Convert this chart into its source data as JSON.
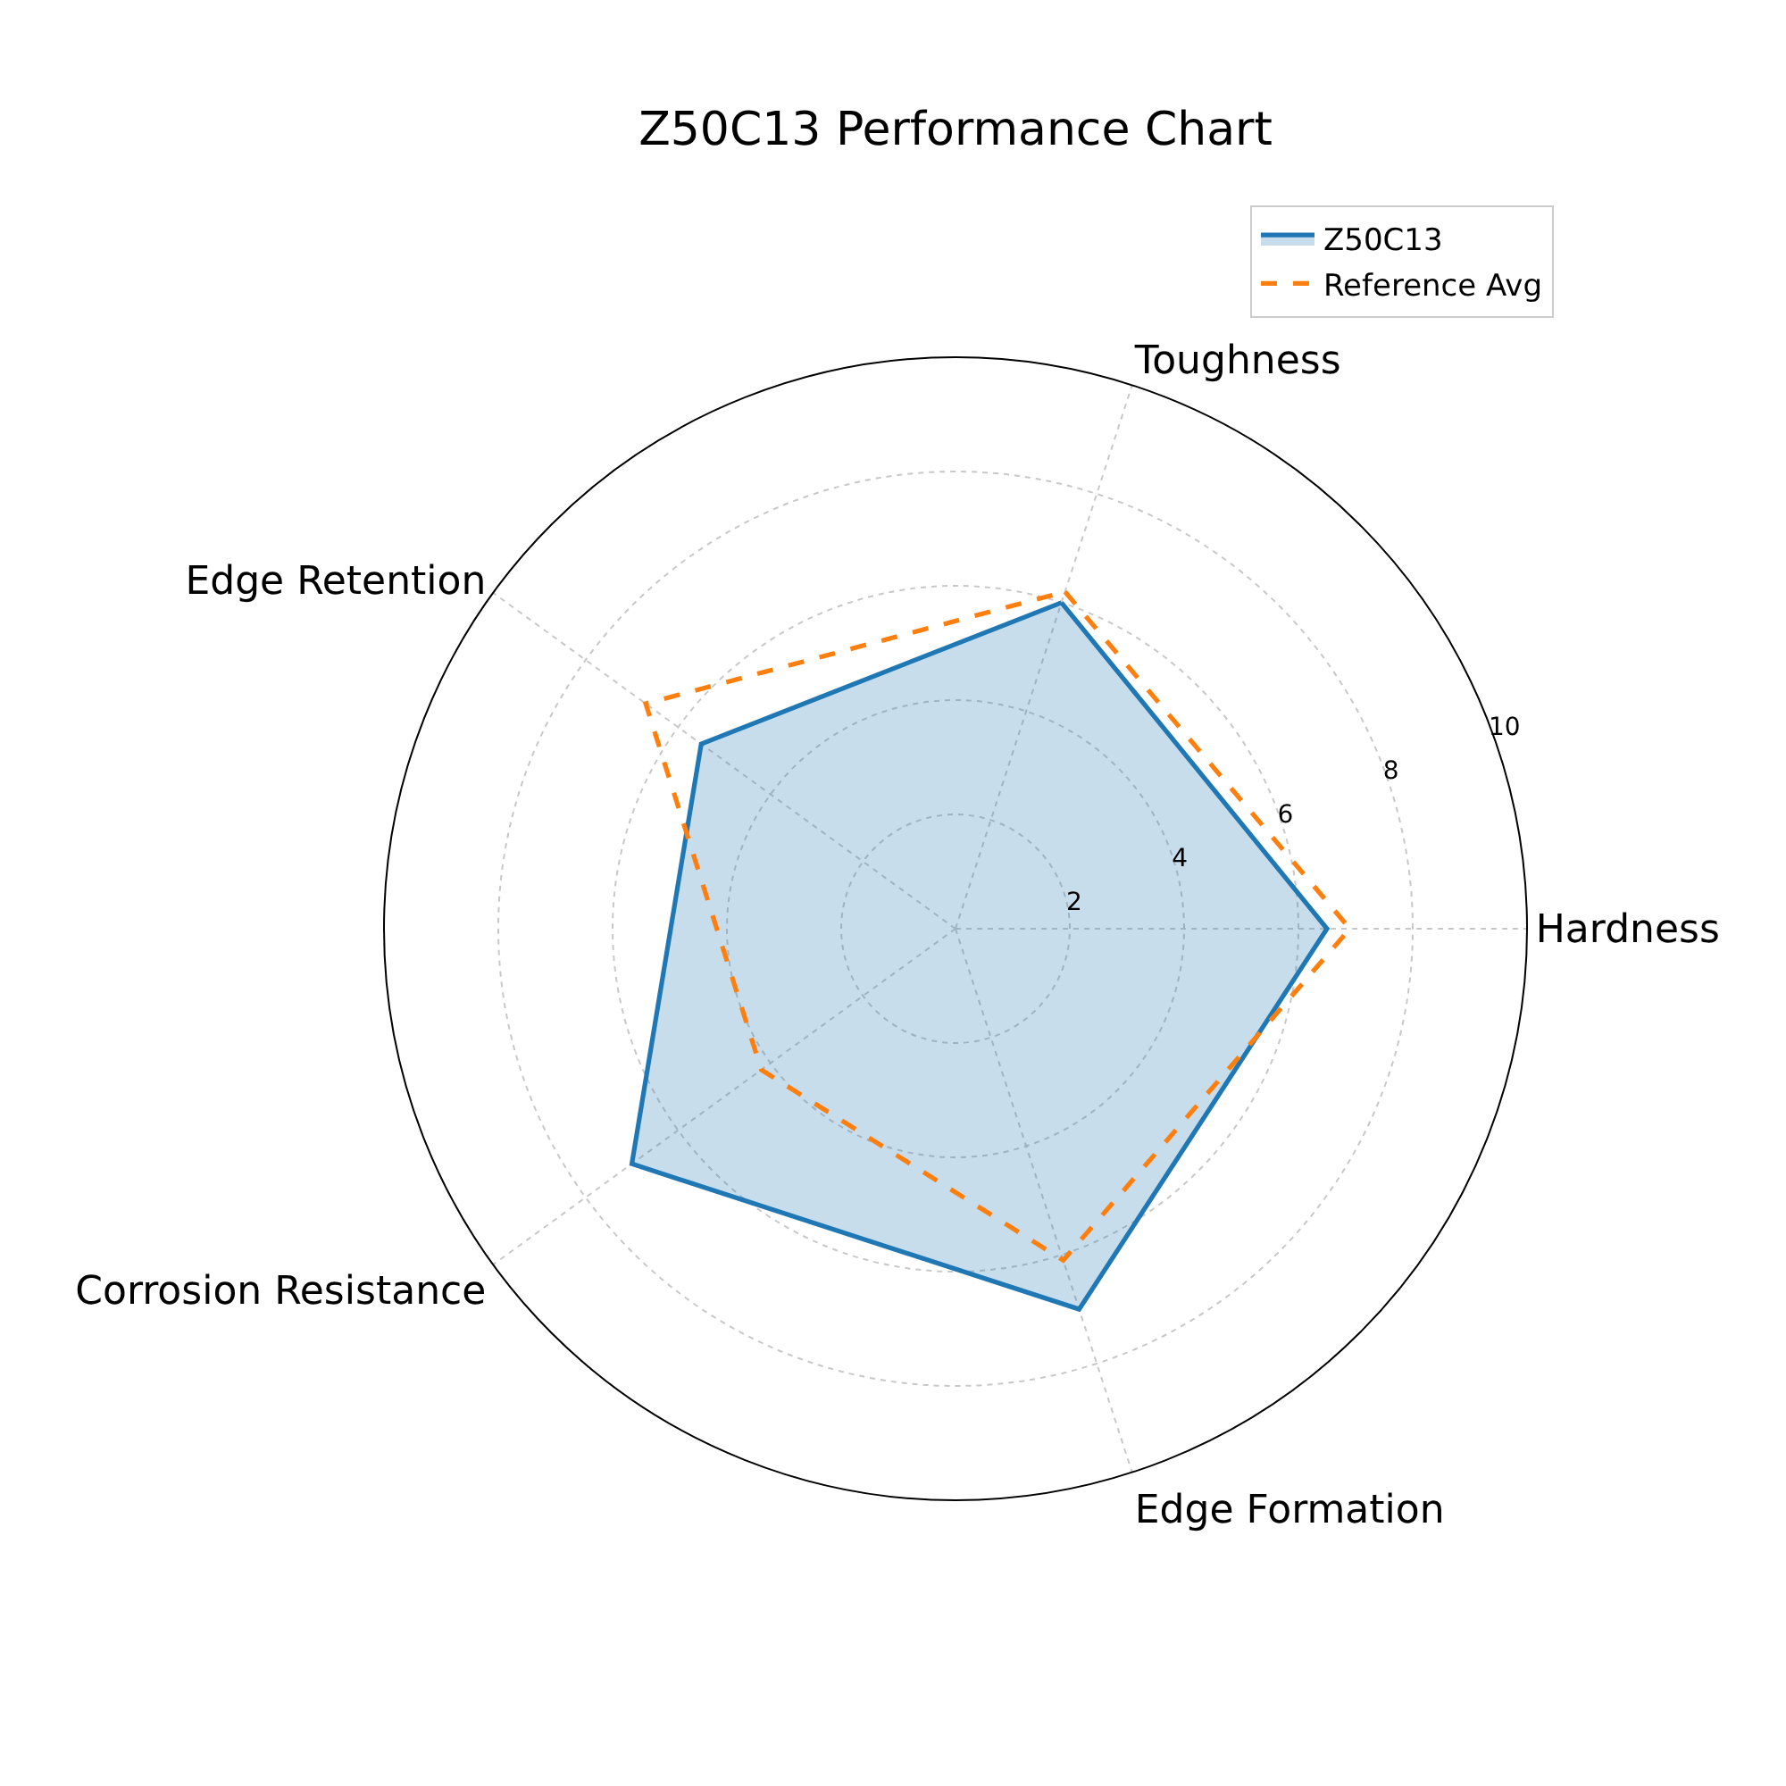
{
  "chart_data": {
    "type": "radar",
    "title": "Z50C13 Performance Chart",
    "categories": [
      "Toughness",
      "Hardness",
      "Edge Formation",
      "Corrosion Resistance",
      "Edge Retention"
    ],
    "series": [
      {
        "name": "Z50C13",
        "type": "area",
        "color": "#1f77b4",
        "line_style": "solid",
        "values": [
          6.0,
          6.5,
          7.0,
          7.0,
          5.5
        ]
      },
      {
        "name": "Reference Avg",
        "color": "#ff7f0e",
        "line_style": "dashed",
        "values": [
          6.2,
          6.9,
          6.1,
          4.2,
          6.7
        ]
      }
    ],
    "ylim": [
      0,
      10
    ],
    "yticks": [
      2,
      4,
      6,
      8,
      10
    ],
    "grid": true,
    "legend": "top right"
  }
}
